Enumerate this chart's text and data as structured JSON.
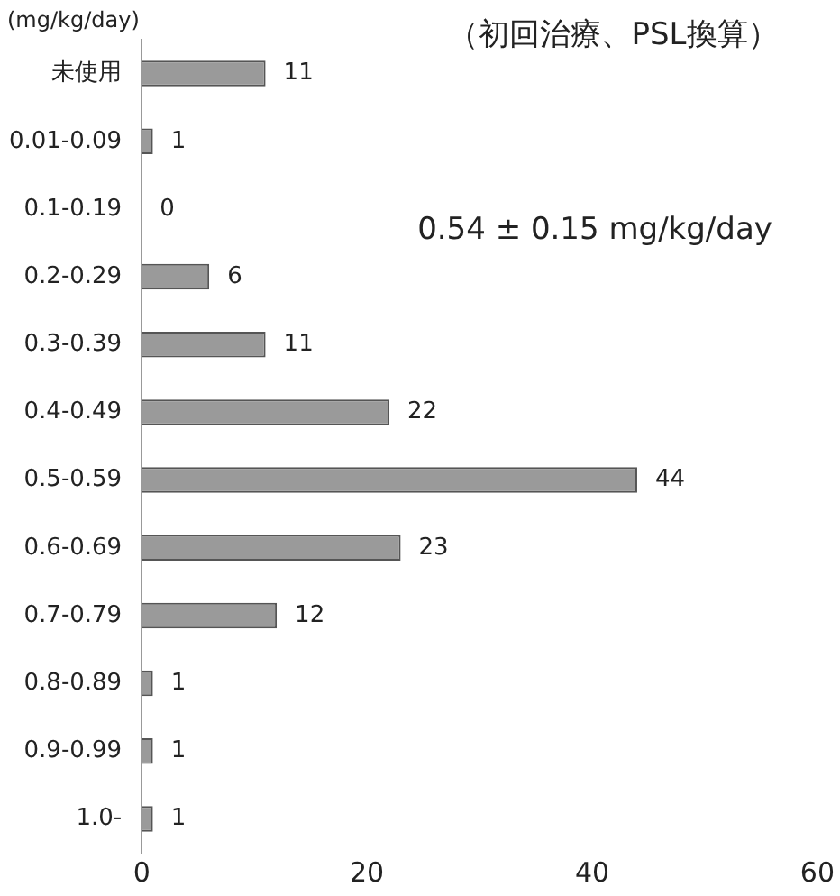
{
  "chart_data": {
    "type": "bar",
    "orientation": "horizontal",
    "title": "（初回治療、PSL換算）",
    "ylabel": "(mg/kg/day)",
    "annotations": [
      "0.54 ± 0.15 mg/kg/day"
    ],
    "categories": [
      "未使用",
      "0.01-0.09",
      "0.1-0.19",
      "0.2-0.29",
      "0.3-0.39",
      "0.4-0.49",
      "0.5-0.59",
      "0.6-0.69",
      "0.7-0.79",
      "0.8-0.89",
      "0.9-0.99",
      "1.0-"
    ],
    "values": [
      11,
      1,
      0,
      6,
      11,
      22,
      44,
      23,
      12,
      1,
      1,
      1
    ],
    "color": "#9a9a9a",
    "xlim": [
      0,
      60
    ],
    "xticks": [
      0,
      20,
      40,
      60
    ],
    "data_labels": true,
    "grid": false,
    "legend": false
  }
}
